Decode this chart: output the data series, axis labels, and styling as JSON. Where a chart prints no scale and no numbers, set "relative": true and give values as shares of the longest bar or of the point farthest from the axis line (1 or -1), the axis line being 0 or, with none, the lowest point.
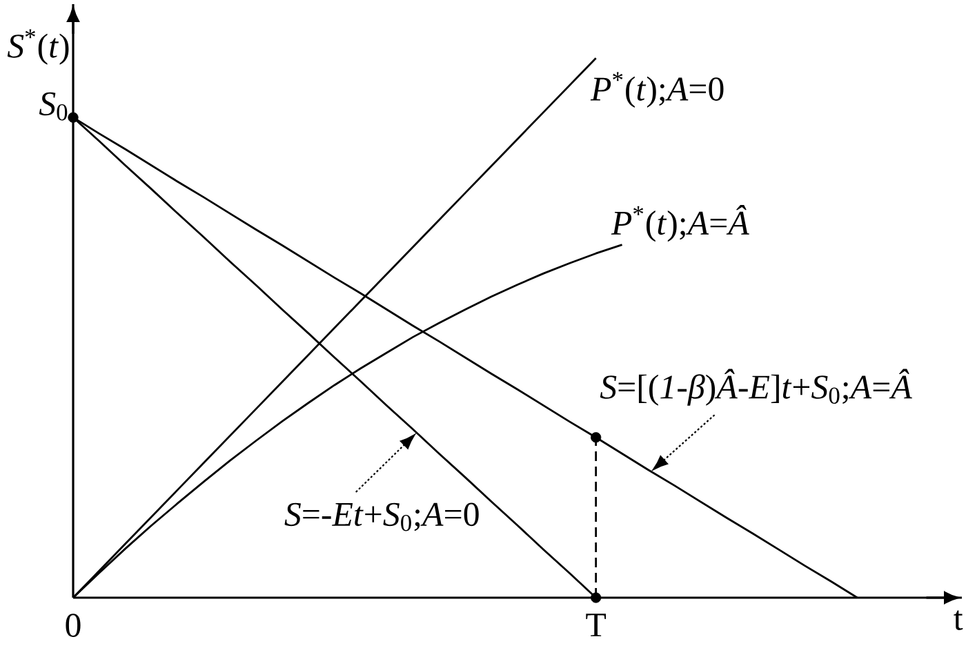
{
  "chart_data": {
    "type": "line",
    "relative": true,
    "xlabel": "t",
    "ylabel": "*S*$^{*}$(*t*)",
    "categories": [
      "0",
      null,
      null,
      null,
      null,
      null,
      null,
      null,
      null,
      null,
      null,
      null,
      null,
      null,
      null,
      null,
      null,
      null,
      null,
      null,
      "T",
      null,
      null,
      null,
      null,
      null,
      null,
      null,
      null,
      null,
      null,
      null,
      null,
      null,
      null
    ],
    "annotations": [
      {
        "text": "*S*$_{0}$",
        "x": "0",
        "y": 0.89
      }
    ],
    "series": [
      {
        "name": "*P*$^{*}$(*t*);*A*=0",
        "color": "#000000",
        "values": [
          0,
          0.05,
          0.1,
          0.15,
          0.2,
          0.25,
          0.3,
          0.35,
          0.4,
          0.45,
          0.5,
          0.55,
          0.6,
          0.65,
          0.7,
          0.75,
          0.8,
          0.85,
          0.9,
          0.95,
          1,
          null,
          null,
          null,
          null,
          null,
          null,
          null,
          null,
          null,
          null,
          null,
          null,
          null,
          null
        ]
      },
      {
        "name": "*P*$^{*}$(*t*);*A*=*Â*",
        "color": "#000000",
        "values": [
          0,
          0.046,
          0.091,
          0.134,
          0.175,
          0.215,
          0.254,
          0.291,
          0.327,
          0.361,
          0.394,
          0.425,
          0.454,
          0.483,
          0.509,
          0.534,
          0.558,
          0.58,
          0.601,
          0.62,
          0.638,
          0.654,
          null,
          null,
          null,
          null,
          null,
          null,
          null,
          null,
          null,
          null,
          null,
          null,
          null
        ]
      },
      {
        "name": "*S*=[(*1*-*β*)*Â*-*E*]*t*+*S*$_{0}$;*A*=*Â*",
        "color": "#000000",
        "values": [
          0.89,
          0.86,
          0.831,
          0.801,
          0.771,
          0.742,
          0.712,
          0.682,
          0.653,
          0.623,
          0.593,
          0.564,
          0.534,
          0.504,
          0.475,
          0.445,
          0.415,
          0.386,
          0.356,
          0.326,
          0.297,
          0.267,
          0.237,
          0.208,
          0.178,
          0.148,
          0.119,
          0.089,
          0.059,
          0.03,
          0,
          null,
          null,
          null,
          null
        ]
      },
      {
        "name": "*S*=-*Et*+*S*$_{0}$;*A*=0",
        "color": "#000000",
        "values": [
          0.89,
          0.846,
          0.801,
          0.757,
          0.712,
          0.668,
          0.623,
          0.579,
          0.534,
          0.49,
          0.445,
          0.401,
          0.356,
          0.312,
          0.267,
          0.223,
          0.178,
          0.134,
          0.089,
          0.045,
          0,
          null,
          null,
          null,
          null,
          null,
          null,
          null,
          null,
          null,
          null,
          null,
          null,
          null,
          null
        ]
      },
      {
        "type": "line",
        "line_style": "dashed",
        "color": "#000000",
        "x": [
          "T",
          "T"
        ],
        "values": [
          0,
          0.297
        ]
      },
      {
        "type": "scatter",
        "marker": "circle",
        "color": "#000000",
        "x": [
          "0",
          "T",
          "T"
        ],
        "values": [
          0.89,
          0,
          0.297
        ]
      }
    ]
  }
}
